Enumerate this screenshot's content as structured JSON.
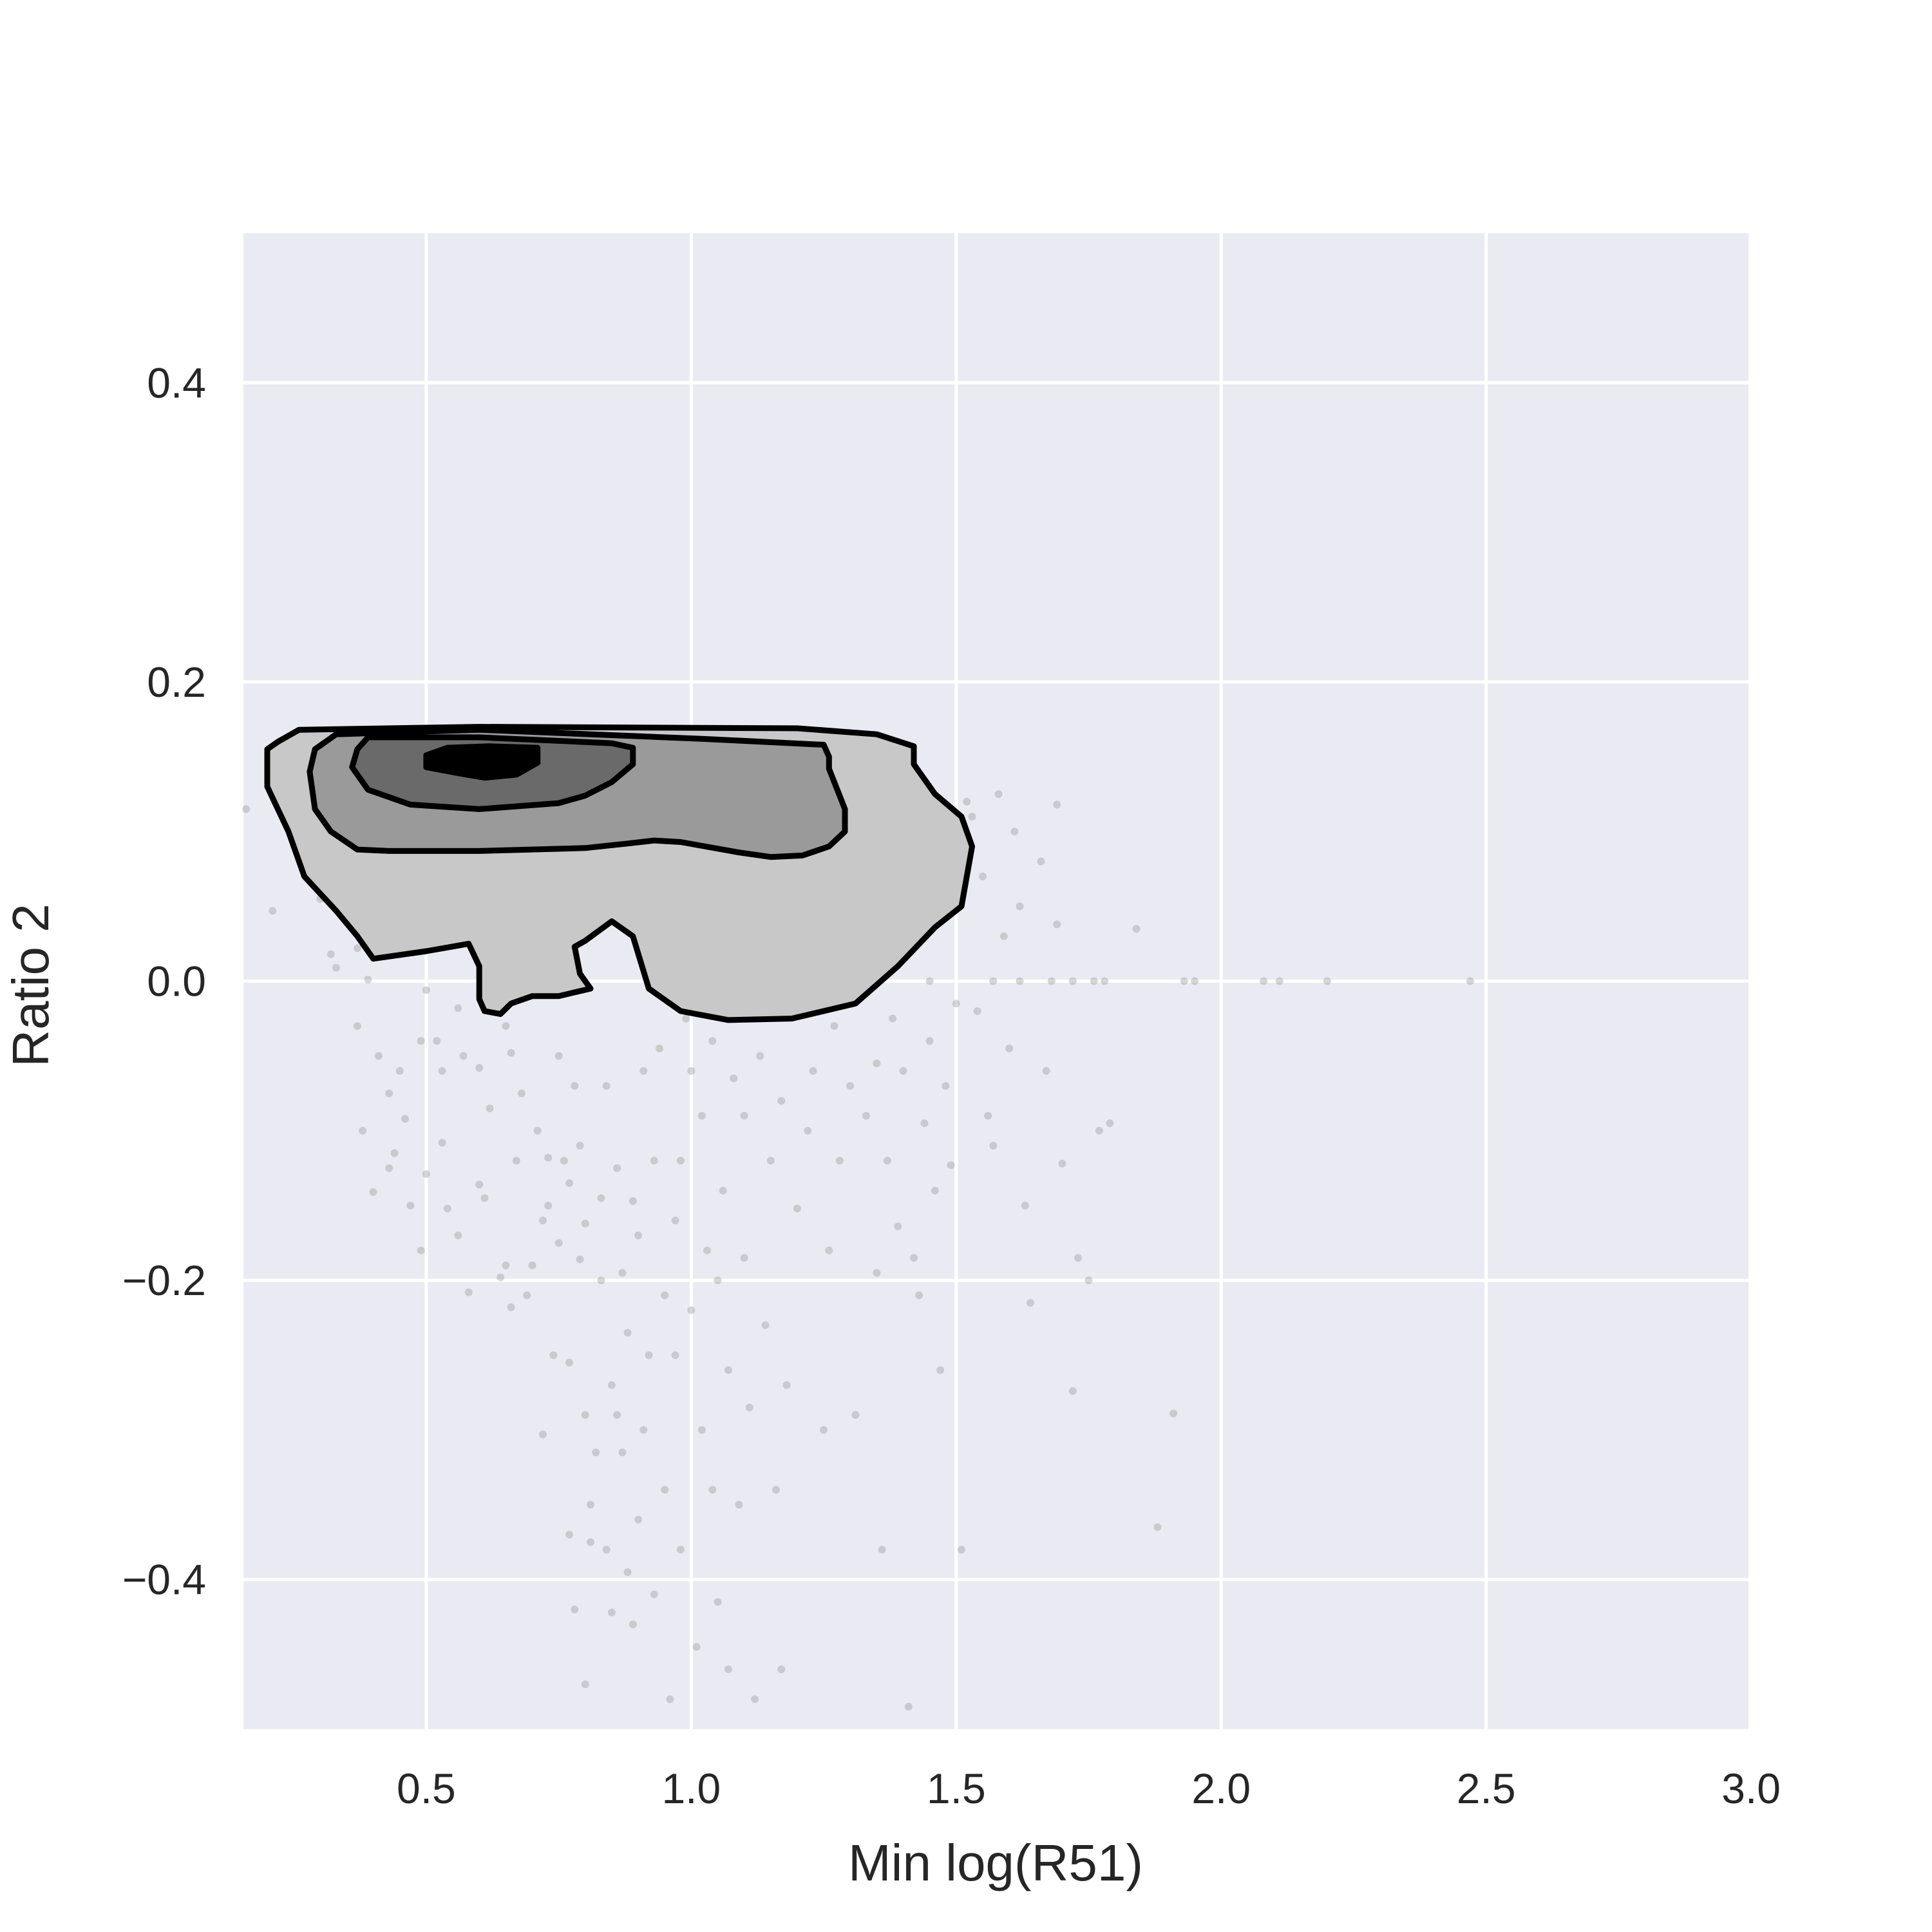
{
  "chart_data": {
    "type": "scatter",
    "overlay": "kde-contour",
    "xlabel": "Min log(R51)",
    "ylabel": "Ratio 2",
    "xlim": [
      0.155,
      2.995
    ],
    "ylim": [
      -0.5,
      0.5
    ],
    "xticks": [
      0.5,
      1.0,
      1.5,
      2.0,
      2.5,
      3.0
    ],
    "yticks": [
      -0.4,
      -0.2,
      0.0,
      0.2,
      0.4
    ],
    "xtick_labels": [
      "0.5",
      "1.0",
      "1.5",
      "2.0",
      "2.5",
      "3.0"
    ],
    "ytick_labels": [
      "−0.4",
      "−0.2",
      "0.0",
      "0.2",
      "0.4"
    ],
    "grid": true,
    "colors": {
      "plot_background": "#eaeaf2",
      "grid": "#ffffff",
      "points": "#8c8c8c",
      "contour_line": "#000000",
      "contour_fills": [
        "#c8c8c8",
        "#9a9a9a",
        "#6a6a6a",
        "#000000"
      ]
    },
    "contours": [
      {
        "level": 1,
        "points": [
          [
            0.22,
            0.16
          ],
          [
            0.26,
            0.168
          ],
          [
            0.6,
            0.17
          ],
          [
            1.2,
            0.169
          ],
          [
            1.35,
            0.165
          ],
          [
            1.42,
            0.157
          ],
          [
            1.42,
            0.145
          ],
          [
            1.46,
            0.125
          ],
          [
            1.51,
            0.11
          ],
          [
            1.53,
            0.09
          ],
          [
            1.51,
            0.05
          ],
          [
            1.46,
            0.036
          ],
          [
            1.39,
            0.01
          ],
          [
            1.31,
            -0.015
          ],
          [
            1.19,
            -0.025
          ],
          [
            1.07,
            -0.026
          ],
          [
            0.98,
            -0.02
          ],
          [
            0.92,
            -0.005
          ],
          [
            0.89,
            0.03
          ],
          [
            0.85,
            0.04
          ],
          [
            0.8,
            0.027
          ],
          [
            0.78,
            0.023
          ],
          [
            0.79,
            0.005
          ],
          [
            0.81,
            -0.005
          ],
          [
            0.75,
            -0.01
          ],
          [
            0.7,
            -0.01
          ],
          [
            0.66,
            -0.015
          ],
          [
            0.64,
            -0.022
          ],
          [
            0.61,
            -0.02
          ],
          [
            0.6,
            -0.012
          ],
          [
            0.6,
            0.01
          ],
          [
            0.58,
            0.025
          ],
          [
            0.5,
            0.02
          ],
          [
            0.4,
            0.015
          ],
          [
            0.37,
            0.03
          ],
          [
            0.33,
            0.047
          ],
          [
            0.27,
            0.07
          ],
          [
            0.24,
            0.1
          ],
          [
            0.2,
            0.13
          ],
          [
            0.2,
            0.155
          ]
        ]
      },
      {
        "level": 2,
        "points": [
          [
            0.29,
            0.155
          ],
          [
            0.33,
            0.165
          ],
          [
            0.6,
            0.168
          ],
          [
            1.02,
            0.162
          ],
          [
            1.25,
            0.158
          ],
          [
            1.26,
            0.15
          ],
          [
            1.26,
            0.142
          ],
          [
            1.29,
            0.115
          ],
          [
            1.29,
            0.1
          ],
          [
            1.26,
            0.09
          ],
          [
            1.21,
            0.084
          ],
          [
            1.15,
            0.083
          ],
          [
            1.09,
            0.086
          ],
          [
            0.98,
            0.093
          ],
          [
            0.93,
            0.094
          ],
          [
            0.88,
            0.092
          ],
          [
            0.8,
            0.089
          ],
          [
            0.6,
            0.087
          ],
          [
            0.43,
            0.087
          ],
          [
            0.37,
            0.088
          ],
          [
            0.32,
            0.1
          ],
          [
            0.29,
            0.115
          ],
          [
            0.28,
            0.14
          ]
        ]
      },
      {
        "level": 3,
        "points": [
          [
            0.37,
            0.155
          ],
          [
            0.39,
            0.163
          ],
          [
            0.6,
            0.163
          ],
          [
            0.85,
            0.159
          ],
          [
            0.89,
            0.156
          ],
          [
            0.89,
            0.145
          ],
          [
            0.85,
            0.133
          ],
          [
            0.8,
            0.124
          ],
          [
            0.75,
            0.119
          ],
          [
            0.6,
            0.115
          ],
          [
            0.47,
            0.118
          ],
          [
            0.39,
            0.128
          ],
          [
            0.36,
            0.143
          ]
        ]
      },
      {
        "level": 4,
        "points": [
          [
            0.5,
            0.151
          ],
          [
            0.54,
            0.156
          ],
          [
            0.62,
            0.157
          ],
          [
            0.71,
            0.156
          ],
          [
            0.71,
            0.146
          ],
          [
            0.67,
            0.138
          ],
          [
            0.61,
            0.136
          ],
          [
            0.56,
            0.139
          ],
          [
            0.5,
            0.143
          ]
        ]
      }
    ],
    "points": [
      [
        0.16,
        0.115
      ],
      [
        0.21,
        0.047
      ],
      [
        0.28,
        0.074
      ],
      [
        0.3,
        0.055
      ],
      [
        0.32,
        0.018
      ],
      [
        0.32,
        0.08
      ],
      [
        0.34,
        0.072
      ],
      [
        0.35,
        0.045
      ],
      [
        0.33,
        0.009
      ],
      [
        0.37,
        0.022
      ],
      [
        0.41,
        0.02
      ],
      [
        0.39,
        0.001
      ],
      [
        0.37,
        -0.03
      ],
      [
        0.41,
        -0.05
      ],
      [
        0.38,
        -0.1
      ],
      [
        0.4,
        -0.141
      ],
      [
        0.43,
        -0.075
      ],
      [
        0.45,
        -0.06
      ],
      [
        0.44,
        -0.115
      ],
      [
        0.43,
        -0.125
      ],
      [
        0.46,
        -0.092
      ],
      [
        0.47,
        -0.15
      ],
      [
        0.49,
        -0.18
      ],
      [
        0.49,
        -0.04
      ],
      [
        0.5,
        -0.129
      ],
      [
        0.5,
        -0.006
      ],
      [
        0.52,
        -0.04
      ],
      [
        0.53,
        -0.108
      ],
      [
        0.53,
        -0.06
      ],
      [
        0.54,
        -0.152
      ],
      [
        0.56,
        -0.17
      ],
      [
        0.56,
        -0.018
      ],
      [
        0.58,
        -0.208
      ],
      [
        0.57,
        -0.05
      ],
      [
        0.6,
        -0.136
      ],
      [
        0.6,
        -0.058
      ],
      [
        0.61,
        -0.145
      ],
      [
        0.62,
        -0.085
      ],
      [
        0.64,
        -0.198
      ],
      [
        0.65,
        -0.03
      ],
      [
        0.65,
        -0.19
      ],
      [
        0.66,
        -0.048
      ],
      [
        0.66,
        -0.218
      ],
      [
        0.68,
        -0.075
      ],
      [
        0.67,
        -0.12
      ],
      [
        0.69,
        -0.21
      ],
      [
        0.7,
        -0.19
      ],
      [
        0.71,
        -0.1
      ],
      [
        0.72,
        -0.16
      ],
      [
        0.72,
        -0.303
      ],
      [
        0.73,
        -0.118
      ],
      [
        0.73,
        -0.15
      ],
      [
        0.74,
        -0.25
      ],
      [
        0.75,
        -0.05
      ],
      [
        0.75,
        -0.175
      ],
      [
        0.76,
        -0.12
      ],
      [
        0.77,
        -0.135
      ],
      [
        0.77,
        -0.255
      ],
      [
        0.77,
        -0.37
      ],
      [
        0.78,
        -0.42
      ],
      [
        0.78,
        -0.07
      ],
      [
        0.79,
        -0.11
      ],
      [
        0.79,
        -0.186
      ],
      [
        0.8,
        -0.162
      ],
      [
        0.8,
        -0.29
      ],
      [
        0.8,
        -0.47
      ],
      [
        0.81,
        -0.35
      ],
      [
        0.81,
        -0.375
      ],
      [
        0.82,
        -0.315
      ],
      [
        0.83,
        -0.145
      ],
      [
        0.83,
        -0.2
      ],
      [
        0.84,
        -0.07
      ],
      [
        0.84,
        -0.38
      ],
      [
        0.85,
        -0.422
      ],
      [
        0.85,
        -0.27
      ],
      [
        0.86,
        -0.125
      ],
      [
        0.86,
        -0.29
      ],
      [
        0.87,
        -0.195
      ],
      [
        0.87,
        -0.315
      ],
      [
        0.88,
        -0.235
      ],
      [
        0.88,
        -0.395
      ],
      [
        0.89,
        -0.147
      ],
      [
        0.89,
        -0.43
      ],
      [
        0.9,
        -0.36
      ],
      [
        0.9,
        -0.17
      ],
      [
        0.91,
        -0.06
      ],
      [
        0.91,
        -0.3
      ],
      [
        0.92,
        -0.25
      ],
      [
        0.93,
        -0.12
      ],
      [
        0.93,
        -0.41
      ],
      [
        0.94,
        -0.045
      ],
      [
        0.95,
        -0.21
      ],
      [
        0.95,
        -0.34
      ],
      [
        0.96,
        -0.48
      ],
      [
        0.97,
        -0.16
      ],
      [
        0.97,
        -0.25
      ],
      [
        0.98,
        -0.12
      ],
      [
        0.98,
        -0.38
      ],
      [
        0.99,
        -0.025
      ],
      [
        1.0,
        -0.06
      ],
      [
        1.0,
        -0.22
      ],
      [
        1.01,
        -0.445
      ],
      [
        1.02,
        -0.09
      ],
      [
        1.02,
        -0.3
      ],
      [
        1.03,
        -0.18
      ],
      [
        1.04,
        -0.34
      ],
      [
        1.04,
        -0.04
      ],
      [
        1.05,
        -0.2
      ],
      [
        1.05,
        -0.415
      ],
      [
        1.06,
        -0.14
      ],
      [
        1.07,
        -0.26
      ],
      [
        1.07,
        -0.46
      ],
      [
        1.08,
        -0.065
      ],
      [
        1.09,
        -0.35
      ],
      [
        1.1,
        -0.09
      ],
      [
        1.1,
        -0.185
      ],
      [
        1.11,
        -0.285
      ],
      [
        1.12,
        -0.48
      ],
      [
        1.13,
        -0.05
      ],
      [
        1.14,
        -0.23
      ],
      [
        1.15,
        -0.12
      ],
      [
        1.16,
        -0.34
      ],
      [
        1.17,
        -0.08
      ],
      [
        1.17,
        -0.46
      ],
      [
        1.18,
        -0.27
      ],
      [
        1.2,
        -0.02
      ],
      [
        1.2,
        -0.152
      ],
      [
        1.22,
        -0.1
      ],
      [
        1.23,
        -0.06
      ],
      [
        1.25,
        -0.3
      ],
      [
        1.26,
        -0.18
      ],
      [
        1.27,
        -0.03
      ],
      [
        1.28,
        -0.12
      ],
      [
        1.3,
        -0.07
      ],
      [
        1.31,
        -0.29
      ],
      [
        1.33,
        -0.09
      ],
      [
        1.35,
        -0.195
      ],
      [
        1.35,
        -0.055
      ],
      [
        1.36,
        -0.38
      ],
      [
        1.37,
        -0.12
      ],
      [
        1.38,
        -0.025
      ],
      [
        1.39,
        -0.164
      ],
      [
        1.4,
        -0.06
      ],
      [
        1.41,
        -0.485
      ],
      [
        1.42,
        -0.185
      ],
      [
        1.43,
        -0.21
      ],
      [
        1.44,
        -0.095
      ],
      [
        1.45,
        -0.04
      ],
      [
        1.46,
        -0.14
      ],
      [
        1.47,
        -0.26
      ],
      [
        1.48,
        -0.07
      ],
      [
        1.49,
        -0.123
      ],
      [
        1.5,
        -0.015
      ],
      [
        1.51,
        -0.38
      ],
      [
        1.52,
        0.12
      ],
      [
        1.53,
        0.11
      ],
      [
        1.54,
        -0.02
      ],
      [
        1.55,
        0.07
      ],
      [
        1.56,
        -0.09
      ],
      [
        1.57,
        -0.11
      ],
      [
        1.58,
        0.125
      ],
      [
        1.59,
        0.03
      ],
      [
        1.6,
        -0.045
      ],
      [
        1.61,
        0.1
      ],
      [
        1.62,
        0.05
      ],
      [
        1.63,
        -0.15
      ],
      [
        1.64,
        -0.215
      ],
      [
        1.66,
        0.08
      ],
      [
        1.67,
        -0.06
      ],
      [
        1.69,
        0.118
      ],
      [
        1.69,
        0.038
      ],
      [
        1.7,
        -0.122
      ],
      [
        1.72,
        -0.274
      ],
      [
        1.73,
        -0.185
      ],
      [
        1.75,
        -0.2
      ],
      [
        1.77,
        -0.1
      ],
      [
        1.78,
        0.0
      ],
      [
        1.79,
        -0.095
      ],
      [
        1.84,
        0.035
      ],
      [
        1.88,
        -0.365
      ],
      [
        1.91,
        -0.289
      ],
      [
        1.93,
        0.0
      ],
      [
        1.95,
        0.0
      ],
      [
        2.08,
        0.0
      ],
      [
        2.11,
        0.0
      ],
      [
        2.2,
        0.0
      ],
      [
        2.47,
        0.0
      ],
      [
        1.68,
        0.0
      ],
      [
        1.72,
        0.0
      ],
      [
        1.76,
        0.0
      ],
      [
        1.57,
        0.0
      ],
      [
        1.62,
        0.0
      ],
      [
        1.45,
        0.0
      ]
    ]
  }
}
